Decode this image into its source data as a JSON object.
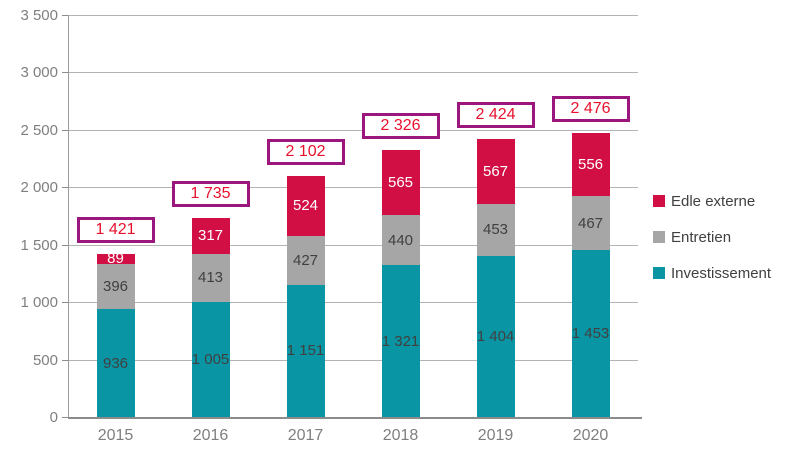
{
  "chart_data": {
    "type": "bar",
    "stacked": true,
    "title": "",
    "xlabel": "",
    "ylabel": "",
    "categories": [
      "2015",
      "2016",
      "2017",
      "2018",
      "2019",
      "2020"
    ],
    "series": [
      {
        "name": "Investissement",
        "color": "#0995a3",
        "label_color": "#404040",
        "values": [
          936,
          1005,
          1151,
          1321,
          1404,
          1453
        ]
      },
      {
        "name": "Entretien",
        "color": "#a6a6a6",
        "label_color": "#404040",
        "values": [
          396,
          413,
          427,
          440,
          453,
          467
        ]
      },
      {
        "name": "Edle externe",
        "color": "#d10f45",
        "label_color": "#ffffff",
        "values": [
          89,
          317,
          524,
          565,
          567,
          556
        ]
      }
    ],
    "totals": [
      1421,
      1735,
      2102,
      2326,
      2424,
      2476
    ],
    "total_box": {
      "fill": "#ffffff",
      "border_color": "#9b177e",
      "text_color": "#e8112d"
    },
    "ylim": [
      0,
      3500
    ],
    "ytick_step": 500,
    "ytick_labels": [
      "0",
      "500",
      "1 000",
      "1 500",
      "2 000",
      "2 500",
      "3 000",
      "3 500"
    ],
    "grid": true,
    "legend_position": "right",
    "legend_order": [
      "Edle externe",
      "Entretien",
      "Investissement"
    ],
    "axis_text_color": "#7f7f7f",
    "grid_color": "#b3b3b3",
    "number_format": "fr-space"
  }
}
